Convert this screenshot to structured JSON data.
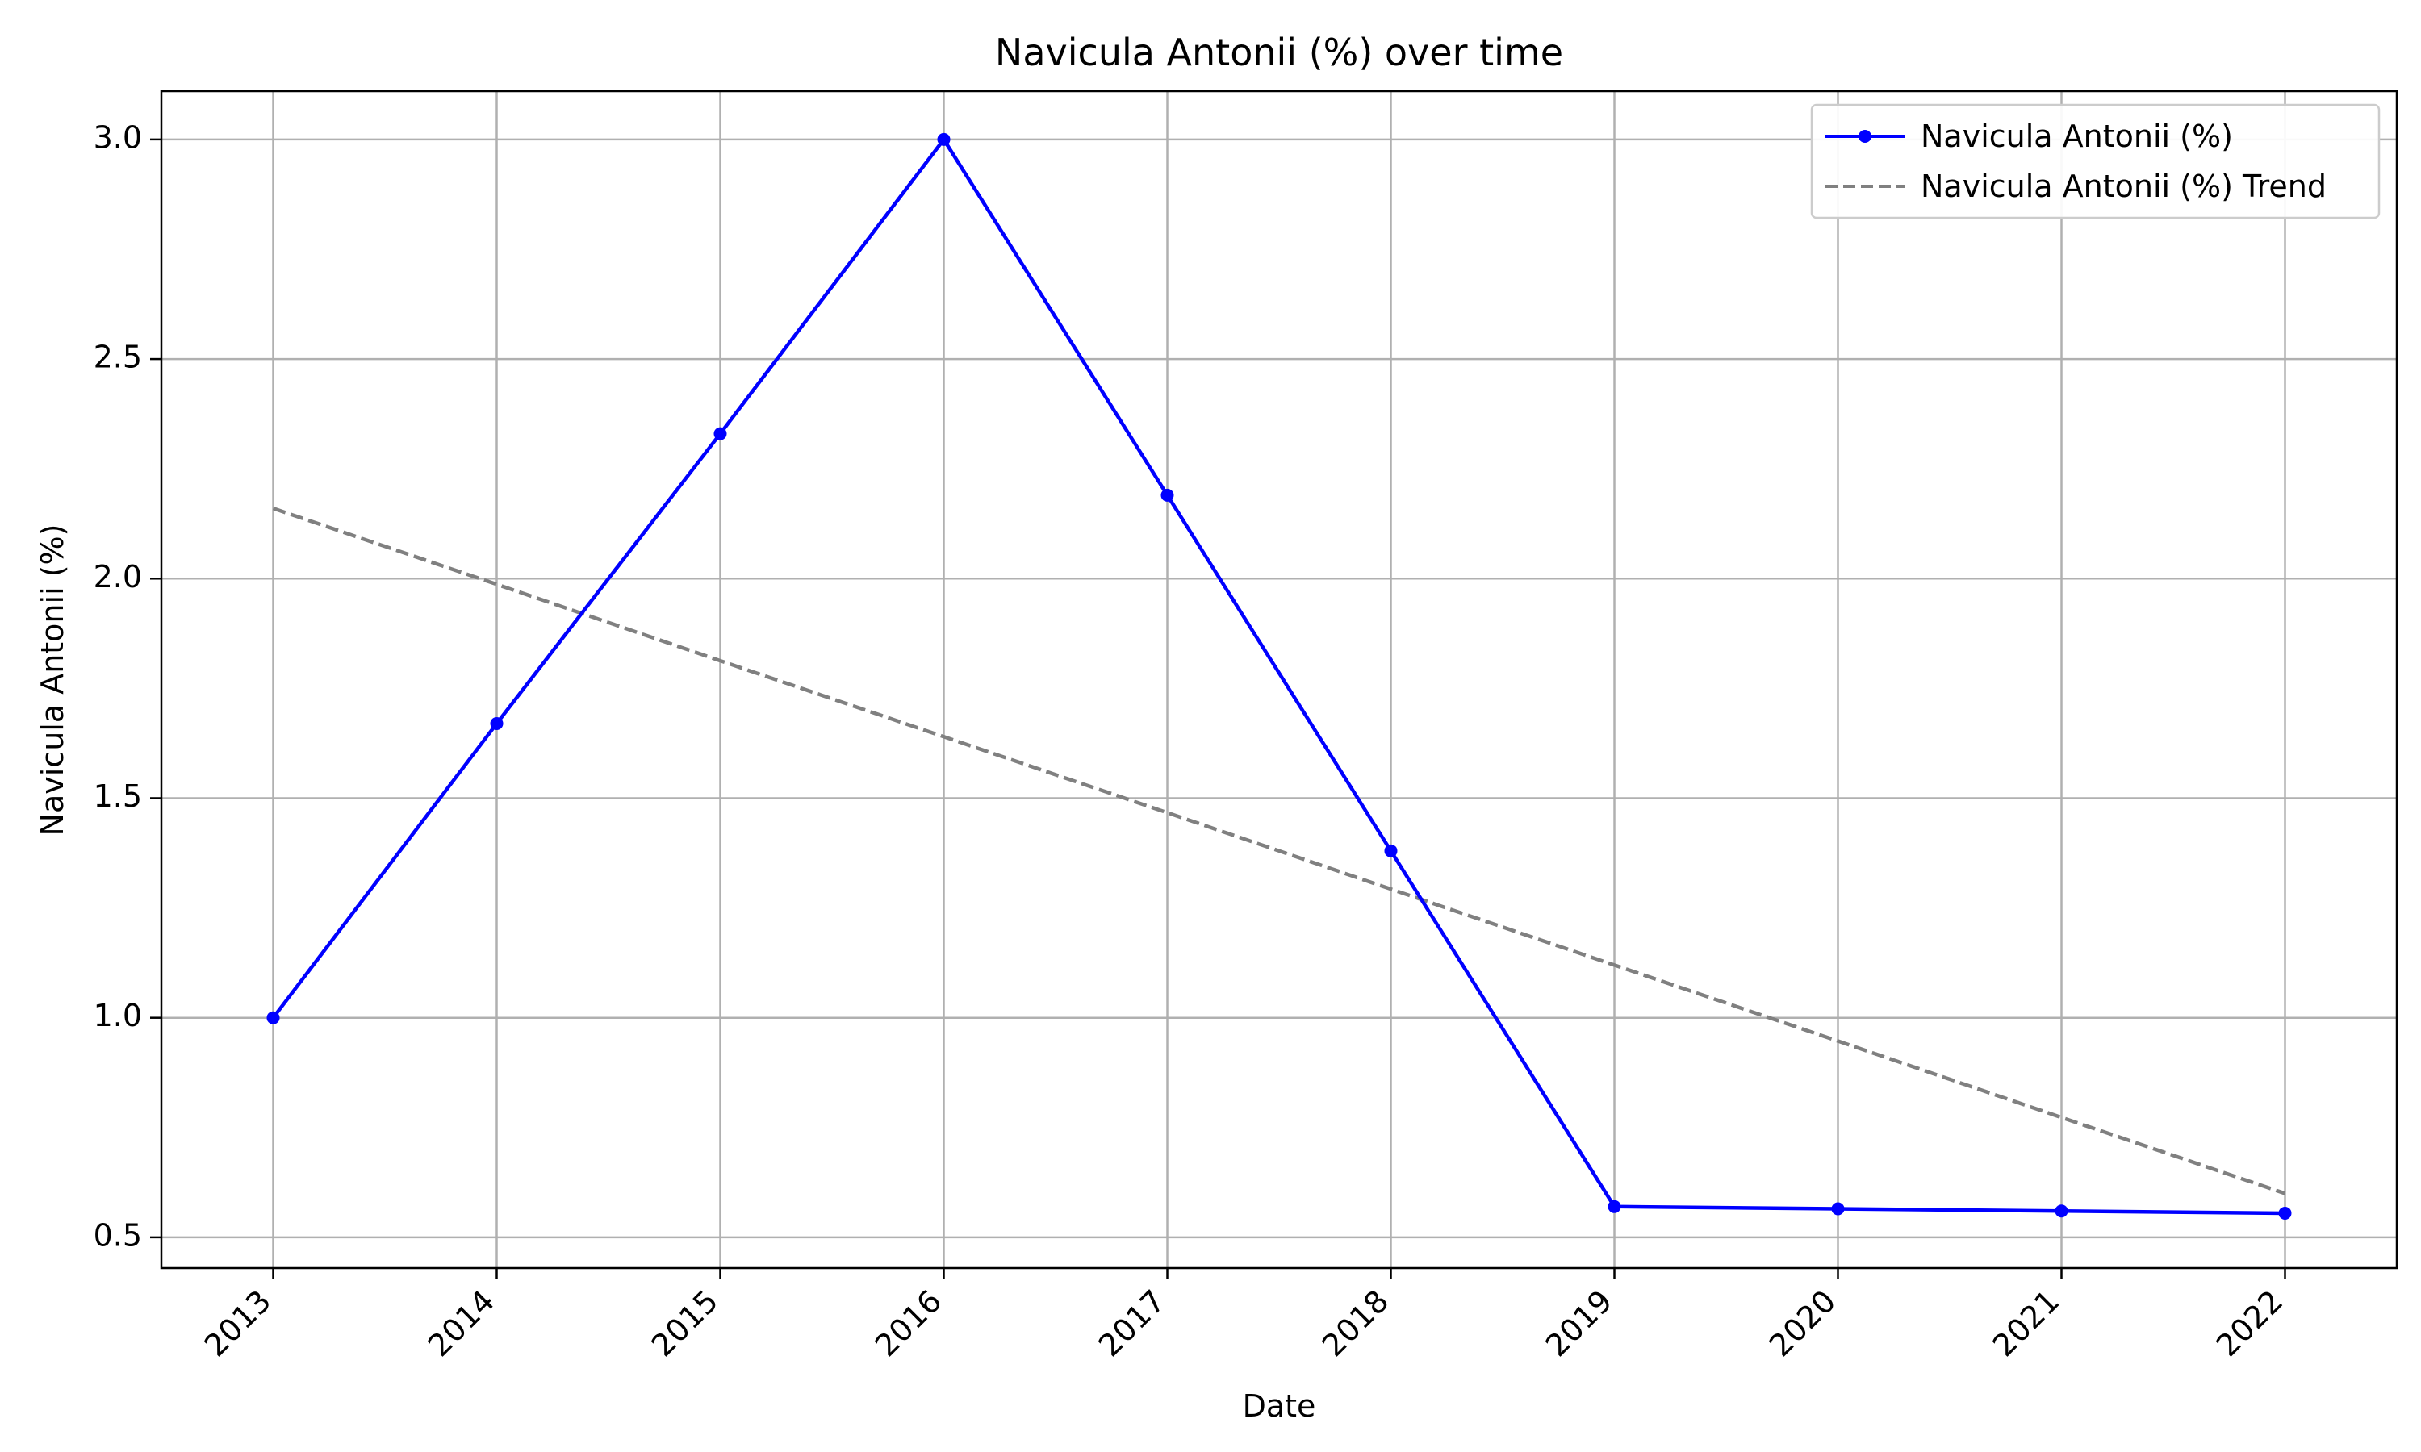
{
  "chart_data": {
    "type": "line",
    "title": "Navicula Antonii (%) over time",
    "xlabel": "Date",
    "ylabel": "Navicula Antonii (%)",
    "x": [
      "2013",
      "2014",
      "2015",
      "2016",
      "2017",
      "2018",
      "2019",
      "2020",
      "2021",
      "2022"
    ],
    "xlim": [
      "2012-07",
      "2022-07"
    ],
    "ylim": [
      0.43,
      3.11
    ],
    "y_ticks": [
      "0.5",
      "1.0",
      "1.5",
      "2.0",
      "2.5",
      "3.0"
    ],
    "grid": true,
    "legend_position": "top-right",
    "series": [
      {
        "name": "Navicula Antonii (%)",
        "values": [
          1.0,
          1.67,
          2.33,
          3.0,
          2.19,
          1.38,
          0.57,
          0.565,
          0.56,
          0.555
        ],
        "color": "#0000ff",
        "line_style": "solid",
        "marker": "circle"
      },
      {
        "name": "Navicula Antonii (%) Trend",
        "values": [
          2.16,
          1.987,
          1.813,
          1.64,
          1.467,
          1.293,
          1.12,
          0.947,
          0.773,
          0.6
        ],
        "color": "#808080",
        "line_style": "dashed",
        "marker": "none"
      }
    ]
  }
}
